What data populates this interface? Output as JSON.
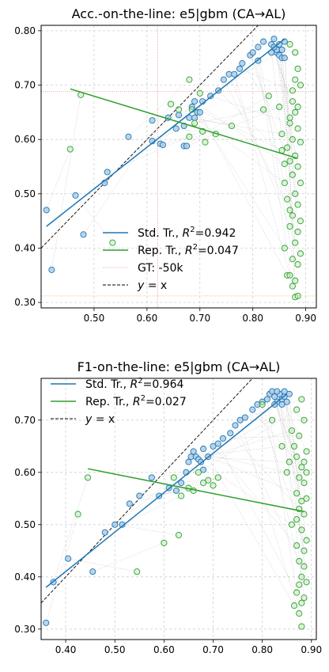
{
  "chart_data": [
    {
      "type": "scatter",
      "title": "Acc.-on-the-line: e5|gbm  (CA→AL)",
      "xlim": [
        0.4,
        0.92
      ],
      "ylim": [
        0.29,
        0.81
      ],
      "xticks": [
        0.5,
        0.6,
        0.7,
        0.8,
        0.9
      ],
      "yticks": [
        0.3,
        0.4,
        0.5,
        0.6,
        0.7,
        0.8
      ],
      "xtick_labels": [
        "0.50",
        "0.60",
        "0.70",
        "0.80",
        "0.90"
      ],
      "ytick_labels": [
        "0.30",
        "0.40",
        "0.50",
        "0.60",
        "0.70",
        "0.80"
      ],
      "grid": true,
      "legend_position": "lower-center",
      "legend": [
        {
          "label": "Std. Tr., ",
          "r2": "=0.942",
          "kind": "line",
          "color": "#1f77b4"
        },
        {
          "label": "Rep. Tr., ",
          "r2": "=0.047",
          "kind": "line",
          "color": "#2ca02c"
        },
        {
          "label": "GT: -50k",
          "kind": "thin",
          "color": "#e88080"
        },
        {
          "label": "= x",
          "kind": "dashed",
          "color": "#000000",
          "italic_prefix": "y"
        }
      ],
      "reference_lines": {
        "gt_x": 0.62,
        "gt_y": 0.688,
        "h_orange_y": 0.312
      },
      "fits": [
        {
          "name": "Std. Tr.",
          "color": "#1f77b4",
          "x": [
            0.41,
            0.86
          ],
          "y": [
            0.44,
            0.785
          ]
        },
        {
          "name": "Rep. Tr.",
          "color": "#2ca02c",
          "x": [
            0.455,
            0.885
          ],
          "y": [
            0.693,
            0.565
          ]
        }
      ],
      "series": [
        {
          "name": "Std. Tr.",
          "color": "#1f77b4",
          "points": [
            [
              0.41,
              0.47
            ],
            [
              0.42,
              0.36
            ],
            [
              0.465,
              0.497
            ],
            [
              0.48,
              0.425
            ],
            [
              0.52,
              0.52
            ],
            [
              0.525,
              0.54
            ],
            [
              0.565,
              0.605
            ],
            [
              0.61,
              0.635
            ],
            [
              0.61,
              0.597
            ],
            [
              0.625,
              0.592
            ],
            [
              0.63,
              0.59
            ],
            [
              0.64,
              0.64
            ],
            [
              0.655,
              0.62
            ],
            [
              0.66,
              0.645
            ],
            [
              0.67,
              0.625
            ],
            [
              0.67,
              0.588
            ],
            [
              0.675,
              0.588
            ],
            [
              0.68,
              0.64
            ],
            [
              0.685,
              0.66
            ],
            [
              0.69,
              0.67
            ],
            [
              0.69,
              0.64
            ],
            [
              0.695,
              0.65
            ],
            [
              0.7,
              0.65
            ],
            [
              0.705,
              0.67
            ],
            [
              0.72,
              0.68
            ],
            [
              0.735,
              0.69
            ],
            [
              0.745,
              0.71
            ],
            [
              0.755,
              0.72
            ],
            [
              0.765,
              0.72
            ],
            [
              0.775,
              0.73
            ],
            [
              0.78,
              0.74
            ],
            [
              0.795,
              0.755
            ],
            [
              0.8,
              0.76
            ],
            [
              0.81,
              0.77
            ],
            [
              0.81,
              0.745
            ],
            [
              0.82,
              0.78
            ],
            [
              0.835,
              0.775
            ],
            [
              0.84,
              0.785
            ],
            [
              0.845,
              0.76
            ],
            [
              0.85,
              0.775
            ],
            [
              0.855,
              0.765
            ],
            [
              0.86,
              0.78
            ],
            [
              0.845,
              0.765
            ],
            [
              0.84,
              0.77
            ],
            [
              0.85,
              0.755
            ],
            [
              0.855,
              0.75
            ],
            [
              0.86,
              0.75
            ],
            [
              0.835,
              0.76
            ]
          ]
        },
        {
          "name": "Rep. Tr.",
          "color": "#2ca02c",
          "points": [
            [
              0.455,
              0.582
            ],
            [
              0.475,
              0.682
            ],
            [
              0.535,
              0.41
            ],
            [
              0.645,
              0.665
            ],
            [
              0.66,
              0.655
            ],
            [
              0.68,
              0.605
            ],
            [
              0.68,
              0.71
            ],
            [
              0.685,
              0.655
            ],
            [
              0.69,
              0.63
            ],
            [
              0.7,
              0.685
            ],
            [
              0.705,
              0.615
            ],
            [
              0.71,
              0.595
            ],
            [
              0.73,
              0.61
            ],
            [
              0.76,
              0.625
            ],
            [
              0.82,
              0.655
            ],
            [
              0.83,
              0.68
            ],
            [
              0.85,
              0.66
            ],
            [
              0.855,
              0.61
            ],
            [
              0.855,
              0.58
            ],
            [
              0.86,
              0.555
            ],
            [
              0.86,
              0.52
            ],
            [
              0.86,
              0.4
            ],
            [
              0.865,
              0.35
            ],
            [
              0.87,
              0.775
            ],
            [
              0.87,
              0.63
            ],
            [
              0.87,
              0.56
            ],
            [
              0.87,
              0.47
            ],
            [
              0.87,
              0.44
            ],
            [
              0.87,
              0.35
            ],
            [
              0.875,
              0.69
            ],
            [
              0.875,
              0.6
            ],
            [
              0.875,
              0.535
            ],
            [
              0.875,
              0.46
            ],
            [
              0.875,
              0.38
            ],
            [
              0.875,
              0.33
            ],
            [
              0.88,
              0.76
            ],
            [
              0.88,
              0.65
            ],
            [
              0.88,
              0.57
            ],
            [
              0.88,
              0.5
            ],
            [
              0.88,
              0.41
            ],
            [
              0.88,
              0.34
            ],
            [
              0.88,
              0.31
            ],
            [
              0.885,
              0.73
            ],
            [
              0.885,
              0.62
            ],
            [
              0.885,
              0.55
            ],
            [
              0.885,
              0.48
            ],
            [
              0.885,
              0.43
            ],
            [
              0.885,
              0.37
            ],
            [
              0.885,
              0.312
            ],
            [
              0.89,
              0.7
            ],
            [
              0.89,
              0.595
            ],
            [
              0.89,
              0.52
            ],
            [
              0.89,
              0.45
            ],
            [
              0.89,
              0.39
            ],
            [
              0.88,
              0.71
            ],
            [
              0.875,
              0.67
            ],
            [
              0.87,
              0.64
            ],
            [
              0.865,
              0.585
            ],
            [
              0.865,
              0.49
            ],
            [
              0.885,
              0.66
            ]
          ]
        }
      ]
    },
    {
      "type": "scatter",
      "title": "F1-on-the-line: e5|gbm  (CA→AL)",
      "xlim": [
        0.35,
        0.91
      ],
      "ylim": [
        0.28,
        0.78
      ],
      "xticks": [
        0.4,
        0.5,
        0.6,
        0.7,
        0.8,
        0.9
      ],
      "yticks": [
        0.3,
        0.4,
        0.5,
        0.6,
        0.7
      ],
      "xtick_labels": [
        "0.40",
        "0.50",
        "0.60",
        "0.70",
        "0.80",
        "0.90"
      ],
      "ytick_labels": [
        "0.30",
        "0.40",
        "0.50",
        "0.60",
        "0.70"
      ],
      "grid": true,
      "legend_position": "upper-left",
      "legend": [
        {
          "label": "Std. Tr., ",
          "r2": "=0.964",
          "kind": "line",
          "color": "#1f77b4"
        },
        {
          "label": "Rep. Tr., ",
          "r2": "=0.027",
          "kind": "line",
          "color": "#2ca02c"
        },
        {
          "label": "= x",
          "kind": "dashed",
          "color": "#000000",
          "italic_prefix": "y"
        }
      ],
      "fits": [
        {
          "name": "Std. Tr.",
          "color": "#1f77b4",
          "x": [
            0.36,
            0.85
          ],
          "y": [
            0.38,
            0.75
          ]
        },
        {
          "name": "Rep. Tr.",
          "color": "#2ca02c",
          "x": [
            0.445,
            0.885
          ],
          "y": [
            0.607,
            0.525
          ]
        }
      ],
      "series": [
        {
          "name": "Std. Tr.",
          "color": "#1f77b4",
          "points": [
            [
              0.36,
              0.312
            ],
            [
              0.375,
              0.39
            ],
            [
              0.405,
              0.435
            ],
            [
              0.455,
              0.41
            ],
            [
              0.48,
              0.485
            ],
            [
              0.5,
              0.5
            ],
            [
              0.515,
              0.5
            ],
            [
              0.53,
              0.54
            ],
            [
              0.55,
              0.555
            ],
            [
              0.575,
              0.59
            ],
            [
              0.59,
              0.555
            ],
            [
              0.61,
              0.57
            ],
            [
              0.625,
              0.565
            ],
            [
              0.635,
              0.58
            ],
            [
              0.645,
              0.6
            ],
            [
              0.65,
              0.62
            ],
            [
              0.655,
              0.63
            ],
            [
              0.66,
              0.64
            ],
            [
              0.665,
              0.63
            ],
            [
              0.67,
              0.625
            ],
            [
              0.675,
              0.62
            ],
            [
              0.68,
              0.645
            ],
            [
              0.68,
              0.605
            ],
            [
              0.69,
              0.63
            ],
            [
              0.7,
              0.65
            ],
            [
              0.71,
              0.655
            ],
            [
              0.72,
              0.665
            ],
            [
              0.735,
              0.675
            ],
            [
              0.745,
              0.69
            ],
            [
              0.755,
              0.7
            ],
            [
              0.765,
              0.705
            ],
            [
              0.78,
              0.72
            ],
            [
              0.79,
              0.73
            ],
            [
              0.8,
              0.735
            ],
            [
              0.81,
              0.74
            ],
            [
              0.815,
              0.75
            ],
            [
              0.82,
              0.755
            ],
            [
              0.825,
              0.745
            ],
            [
              0.83,
              0.735
            ],
            [
              0.835,
              0.75
            ],
            [
              0.84,
              0.74
            ],
            [
              0.845,
              0.745
            ],
            [
              0.85,
              0.735
            ],
            [
              0.855,
              0.75
            ],
            [
              0.825,
              0.73
            ],
            [
              0.84,
              0.73
            ],
            [
              0.83,
              0.755
            ],
            [
              0.845,
              0.755
            ]
          ]
        },
        {
          "name": "Rep. Tr.",
          "color": "#2ca02c",
          "points": [
            [
              0.425,
              0.52
            ],
            [
              0.445,
              0.59
            ],
            [
              0.545,
              0.41
            ],
            [
              0.6,
              0.465
            ],
            [
              0.62,
              0.59
            ],
            [
              0.63,
              0.48
            ],
            [
              0.635,
              0.555
            ],
            [
              0.65,
              0.57
            ],
            [
              0.66,
              0.565
            ],
            [
              0.67,
              0.6
            ],
            [
              0.68,
              0.58
            ],
            [
              0.69,
              0.585
            ],
            [
              0.7,
              0.575
            ],
            [
              0.71,
              0.59
            ],
            [
              0.8,
              0.73
            ],
            [
              0.82,
              0.7
            ],
            [
              0.84,
              0.65
            ],
            [
              0.85,
              0.6
            ],
            [
              0.855,
              0.62
            ],
            [
              0.86,
              0.68
            ],
            [
              0.86,
              0.5
            ],
            [
              0.865,
              0.345
            ],
            [
              0.87,
              0.72
            ],
            [
              0.87,
              0.56
            ],
            [
              0.87,
              0.46
            ],
            [
              0.87,
              0.37
            ],
            [
              0.875,
              0.67
            ],
            [
              0.875,
              0.53
            ],
            [
              0.875,
              0.43
            ],
            [
              0.875,
              0.33
            ],
            [
              0.88,
              0.74
            ],
            [
              0.88,
              0.61
            ],
            [
              0.88,
              0.49
            ],
            [
              0.88,
              0.4
            ],
            [
              0.88,
              0.305
            ],
            [
              0.885,
              0.7
            ],
            [
              0.885,
              0.58
            ],
            [
              0.885,
              0.52
            ],
            [
              0.885,
              0.45
            ],
            [
              0.885,
              0.36
            ],
            [
              0.89,
              0.64
            ],
            [
              0.89,
              0.55
            ],
            [
              0.89,
              0.47
            ],
            [
              0.89,
              0.39
            ],
            [
              0.87,
              0.63
            ],
            [
              0.875,
              0.59
            ],
            [
              0.88,
              0.545
            ],
            [
              0.885,
              0.42
            ],
            [
              0.865,
              0.65
            ],
            [
              0.89,
              0.6
            ],
            [
              0.87,
              0.51
            ],
            [
              0.88,
              0.35
            ],
            [
              0.875,
              0.385
            ],
            [
              0.885,
              0.62
            ]
          ]
        }
      ]
    }
  ]
}
